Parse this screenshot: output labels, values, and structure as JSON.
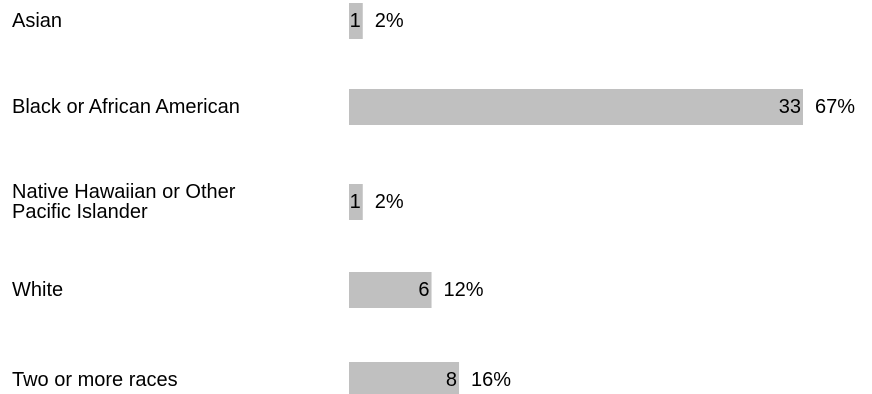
{
  "chart_data": {
    "type": "bar",
    "orientation": "horizontal",
    "categories": [
      [
        "Asian"
      ],
      [
        "Black or African American"
      ],
      [
        "Native Hawaiian or Other",
        "Pacific Islander"
      ],
      [
        "White"
      ],
      [
        "Two or more races"
      ]
    ],
    "values": [
      1,
      33,
      1,
      6,
      8
    ],
    "percent_labels": [
      "2%",
      "67%",
      "2%",
      "12%",
      "16%"
    ],
    "xlim": [
      0,
      33
    ],
    "grid": false,
    "legend": "none",
    "bar_color": "#c0c0c0",
    "text_color": "#000000"
  }
}
